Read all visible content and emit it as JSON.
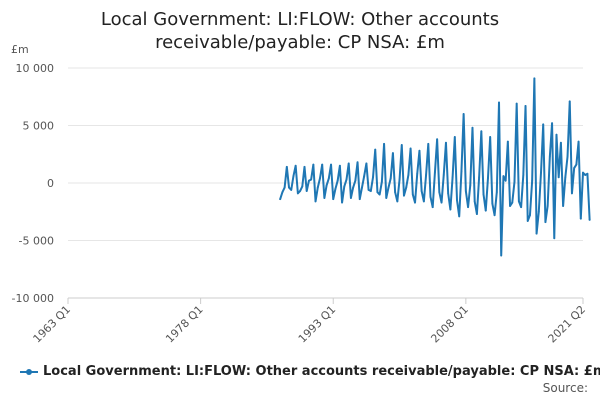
{
  "chart_data": {
    "type": "line",
    "title_lines": [
      "Local Government: LI:FLOW: Other accounts",
      "receivable/payable: CP NSA: £m"
    ],
    "ylabel": "£m",
    "ylim": [
      -10000,
      10000
    ],
    "yticks": [
      10000,
      5000,
      0,
      -5000,
      -10000
    ],
    "ytick_labels": [
      "10 000",
      "5 000",
      "0",
      "-5 000",
      "-10 000"
    ],
    "xlim": [
      1963.0,
      2021.25
    ],
    "xticks": [
      1963.0,
      1978.0,
      1993.0,
      2008.0,
      2021.25
    ],
    "xtick_labels": [
      "1963 Q1",
      "1978 Q1",
      "1993 Q1",
      "2008 Q1",
      "2021 Q2"
    ],
    "grid": "horizontal",
    "legend_position": "bottom",
    "color": "#1f77b4",
    "series": [
      {
        "name": "Local Government: LI:FLOW: Other accounts receivable/payable: CP NSA: £m",
        "x_start": 1987.0,
        "step": 0.25,
        "values": [
          -1400,
          -800,
          -400,
          1400,
          -400,
          -600,
          600,
          1500,
          -900,
          -700,
          -300,
          1400,
          -700,
          200,
          300,
          1600,
          -1600,
          -400,
          400,
          1600,
          -1300,
          -200,
          400,
          1600,
          -1400,
          -500,
          200,
          1500,
          -1700,
          -300,
          300,
          1700,
          -1300,
          -400,
          200,
          1800,
          -1400,
          -400,
          600,
          1700,
          -600,
          -700,
          500,
          2900,
          -800,
          -1000,
          100,
          3400,
          -1300,
          -400,
          400,
          2600,
          -800,
          -1600,
          300,
          3300,
          -1100,
          -400,
          700,
          3000,
          -1000,
          -1700,
          800,
          2800,
          -700,
          -1600,
          700,
          3400,
          -1200,
          -2100,
          900,
          3800,
          -800,
          -1700,
          700,
          3500,
          -900,
          -2300,
          500,
          4000,
          -1500,
          -2900,
          1000,
          6000,
          -700,
          -2100,
          -200,
          4800,
          -1600,
          -2700,
          500,
          4500,
          -1000,
          -2400,
          400,
          4000,
          -1800,
          -2800,
          -800,
          7000,
          -6300,
          600,
          200,
          3600,
          -2000,
          -1700,
          100,
          6900,
          -1600,
          -2100,
          700,
          6700,
          -3300,
          -2800,
          200,
          9100,
          -4400,
          -2500,
          900,
          5100,
          -3400,
          -2000,
          2300,
          5200,
          -4800,
          4200,
          500,
          3500,
          -2000,
          500,
          2300,
          7100,
          -900,
          1300,
          1600,
          3600,
          -3100,
          900,
          700,
          800,
          -3200
        ]
      }
    ]
  },
  "legend": {
    "label": "Local Government: LI:FLOW: Other accounts receivable/payable: CP NSA: £m"
  },
  "source_label": "Source:"
}
